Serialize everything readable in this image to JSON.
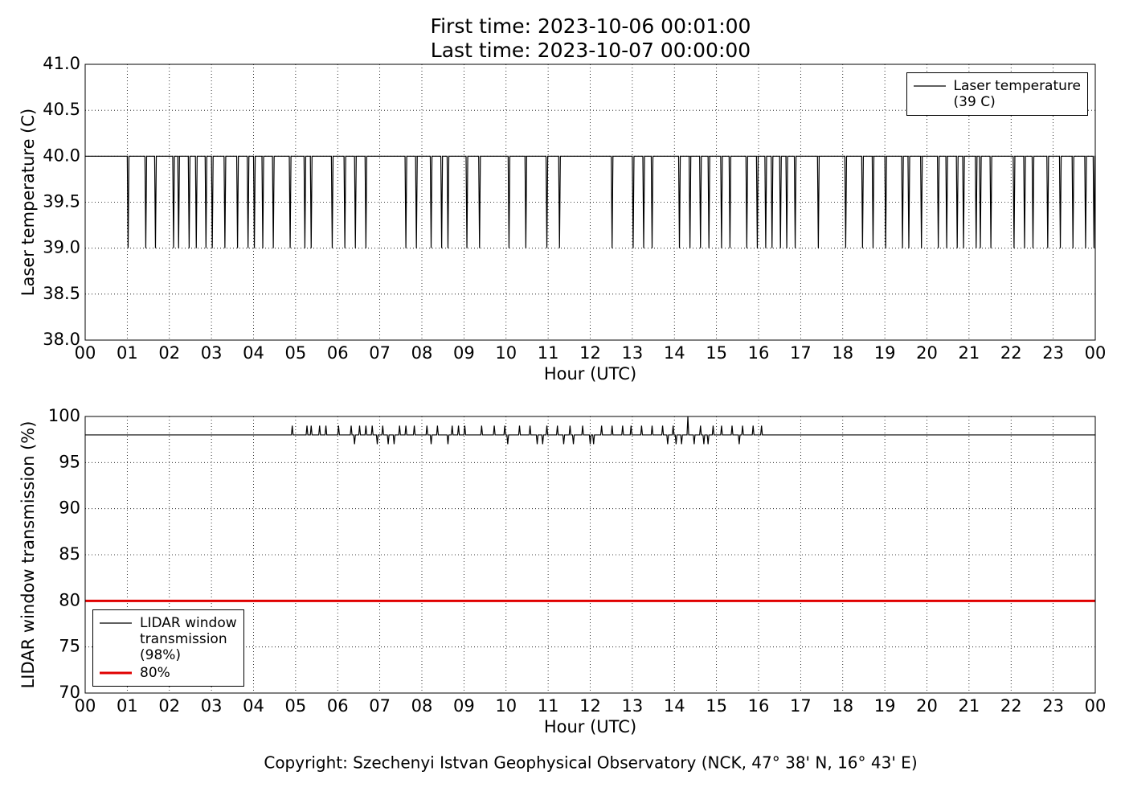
{
  "title": [
    "First time: 2023-10-06 00:01:00",
    "Last time: 2023-10-07 00:00:00"
  ],
  "footer": "Copyright: Szechenyi Istvan Geophysical Observatory (NCK, 47° 38' N, 16° 43' E)",
  "chart_data": [
    {
      "type": "line",
      "xlabel": "Hour (UTC)",
      "ylabel": "Laser temperature (C)",
      "xlim": [
        0,
        24
      ],
      "ylim": [
        38,
        41
      ],
      "grid": true,
      "legend": "upper right",
      "xticks": [
        {
          "value": 0,
          "label": "00"
        },
        {
          "value": 1,
          "label": "01"
        },
        {
          "value": 2,
          "label": "02"
        },
        {
          "value": 3,
          "label": "03"
        },
        {
          "value": 4,
          "label": "04"
        },
        {
          "value": 5,
          "label": "05"
        },
        {
          "value": 6,
          "label": "06"
        },
        {
          "value": 7,
          "label": "07"
        },
        {
          "value": 8,
          "label": "08"
        },
        {
          "value": 9,
          "label": "09"
        },
        {
          "value": 10,
          "label": "10"
        },
        {
          "value": 11,
          "label": "11"
        },
        {
          "value": 12,
          "label": "12"
        },
        {
          "value": 13,
          "label": "13"
        },
        {
          "value": 14,
          "label": "14"
        },
        {
          "value": 15,
          "label": "15"
        },
        {
          "value": 16,
          "label": "16"
        },
        {
          "value": 17,
          "label": "17"
        },
        {
          "value": 18,
          "label": "18"
        },
        {
          "value": 19,
          "label": "19"
        },
        {
          "value": 20,
          "label": "20"
        },
        {
          "value": 21,
          "label": "21"
        },
        {
          "value": 22,
          "label": "22"
        },
        {
          "value": 23,
          "label": "23"
        },
        {
          "value": 24,
          "label": "00"
        }
      ],
      "yticks": [
        {
          "value": 38,
          "label": "38.0"
        },
        {
          "value": 38.5,
          "label": "38.5"
        },
        {
          "value": 39,
          "label": "39.0"
        },
        {
          "value": 39.5,
          "label": "39.5"
        },
        {
          "value": 40,
          "label": "40.0"
        },
        {
          "value": 40.5,
          "label": "40.5"
        },
        {
          "value": 41,
          "label": "41.0"
        }
      ],
      "series": [
        {
          "name": "Laser temperature\n(39 C)",
          "color": "#000000",
          "x": [
            0,
            1.0,
            1.02,
            1.04,
            1.42,
            1.44,
            1.46,
            1.65,
            1.67,
            1.69,
            2.08,
            2.1,
            2.12,
            2.2,
            2.22,
            2.24,
            2.45,
            2.47,
            2.49,
            2.62,
            2.64,
            2.66,
            2.85,
            2.87,
            2.89,
            3.0,
            3.02,
            3.04,
            3.3,
            3.32,
            3.34,
            3.6,
            3.62,
            3.64,
            3.85,
            3.87,
            3.89,
            4.0,
            4.02,
            4.04,
            4.2,
            4.22,
            4.24,
            4.45,
            4.47,
            4.49,
            4.85,
            4.87,
            4.89,
            5.2,
            5.22,
            5.24,
            5.35,
            5.37,
            5.39,
            5.85,
            5.87,
            5.89,
            6.15,
            6.17,
            6.19,
            6.4,
            6.42,
            6.44,
            6.65,
            6.67,
            6.69,
            7.6,
            7.62,
            7.64,
            7.85,
            7.87,
            7.89,
            8.2,
            8.22,
            8.24,
            8.45,
            8.47,
            8.49,
            8.6,
            8.62,
            8.64,
            9.05,
            9.07,
            9.09,
            9.35,
            9.37,
            9.39,
            10.05,
            10.07,
            10.09,
            10.45,
            10.47,
            10.49,
            10.95,
            10.97,
            10.99,
            11.25,
            11.27,
            11.29,
            12.5,
            12.52,
            12.54,
            13.0,
            13.02,
            13.04,
            13.25,
            13.27,
            13.29,
            13.45,
            13.47,
            13.49,
            14.1,
            14.12,
            14.14,
            14.35,
            14.37,
            14.39,
            14.6,
            14.62,
            14.64,
            14.8,
            14.82,
            14.84,
            15.1,
            15.12,
            15.14,
            15.3,
            15.32,
            15.34,
            15.7,
            15.72,
            15.74,
            15.95,
            15.97,
            15.99,
            16.15,
            16.17,
            16.19,
            16.3,
            16.32,
            16.34,
            16.5,
            16.52,
            16.54,
            16.65,
            16.67,
            16.69,
            16.85,
            16.87,
            16.89,
            17.4,
            17.42,
            17.44,
            18.05,
            18.07,
            18.09,
            18.45,
            18.47,
            18.49,
            18.7,
            18.72,
            18.74,
            19.0,
            19.02,
            19.04,
            19.4,
            19.42,
            19.44,
            19.55,
            19.57,
            19.59,
            19.85,
            19.87,
            19.89,
            20.25,
            20.27,
            20.29,
            20.45,
            20.47,
            20.49,
            20.7,
            20.72,
            20.74,
            20.85,
            20.87,
            20.89,
            21.15,
            21.17,
            21.19,
            21.25,
            21.27,
            21.29,
            21.5,
            21.52,
            21.54,
            22.05,
            22.07,
            22.09,
            22.3,
            22.32,
            22.34,
            22.5,
            22.52,
            22.54,
            22.85,
            22.87,
            22.89,
            23.15,
            23.17,
            23.19,
            23.45,
            23.47,
            23.49,
            23.75,
            23.77,
            23.79,
            23.95,
            23.97,
            23.99,
            24
          ],
          "values": [
            40,
            40,
            39,
            40,
            40,
            39,
            40,
            40,
            39,
            40,
            40,
            39,
            40,
            40,
            39,
            40,
            40,
            39,
            40,
            40,
            39,
            40,
            40,
            39,
            40,
            40,
            39,
            40,
            40,
            39,
            40,
            40,
            39,
            40,
            40,
            39,
            40,
            40,
            39,
            40,
            40,
            39,
            40,
            40,
            39,
            40,
            40,
            39,
            40,
            40,
            39,
            40,
            40,
            39,
            40,
            40,
            39,
            40,
            40,
            39,
            40,
            40,
            39,
            40,
            40,
            39,
            40,
            40,
            39,
            40,
            40,
            39,
            40,
            40,
            39,
            40,
            40,
            39,
            40,
            40,
            39,
            40,
            40,
            39,
            40,
            40,
            39,
            40,
            40,
            39,
            40,
            40,
            39,
            40,
            40,
            39,
            40,
            40,
            39,
            40,
            40,
            39,
            40,
            40,
            39,
            40,
            40,
            39,
            40,
            40,
            39,
            40,
            40,
            39,
            40,
            40,
            39,
            40,
            40,
            39,
            40,
            40,
            39,
            40,
            40,
            39,
            40,
            40,
            39,
            40,
            40,
            39,
            40,
            40,
            39,
            40,
            40,
            39,
            40,
            40,
            39,
            40,
            40,
            39,
            40,
            40,
            39,
            40,
            40,
            39,
            40,
            40,
            39,
            40,
            40,
            39,
            40,
            40,
            39,
            40,
            40,
            39,
            40,
            40,
            39,
            40,
            40,
            39,
            40,
            40,
            39,
            40,
            40,
            39,
            40,
            40,
            39,
            40,
            40,
            39,
            40,
            40,
            39,
            40,
            40,
            39,
            40,
            40,
            39,
            40,
            40,
            39,
            40,
            40,
            39,
            40,
            40,
            39,
            40,
            40,
            39,
            40,
            40,
            39,
            40,
            40,
            39,
            40,
            40,
            39,
            40,
            40,
            39,
            40,
            40,
            39,
            40,
            40,
            39,
            40,
            40
          ]
        }
      ]
    },
    {
      "type": "line",
      "xlabel": "Hour (UTC)",
      "ylabel": "LIDAR window transmission (%)",
      "xlim": [
        0,
        24
      ],
      "ylim": [
        70,
        100
      ],
      "grid": true,
      "legend": "lower left",
      "xticks": [
        {
          "value": 0,
          "label": "00"
        },
        {
          "value": 1,
          "label": "01"
        },
        {
          "value": 2,
          "label": "02"
        },
        {
          "value": 3,
          "label": "03"
        },
        {
          "value": 4,
          "label": "04"
        },
        {
          "value": 5,
          "label": "05"
        },
        {
          "value": 6,
          "label": "06"
        },
        {
          "value": 7,
          "label": "07"
        },
        {
          "value": 8,
          "label": "08"
        },
        {
          "value": 9,
          "label": "09"
        },
        {
          "value": 10,
          "label": "10"
        },
        {
          "value": 11,
          "label": "11"
        },
        {
          "value": 12,
          "label": "12"
        },
        {
          "value": 13,
          "label": "13"
        },
        {
          "value": 14,
          "label": "14"
        },
        {
          "value": 15,
          "label": "15"
        },
        {
          "value": 16,
          "label": "16"
        },
        {
          "value": 17,
          "label": "17"
        },
        {
          "value": 18,
          "label": "18"
        },
        {
          "value": 19,
          "label": "19"
        },
        {
          "value": 20,
          "label": "20"
        },
        {
          "value": 21,
          "label": "21"
        },
        {
          "value": 22,
          "label": "22"
        },
        {
          "value": 23,
          "label": "23"
        },
        {
          "value": 24,
          "label": "00"
        }
      ],
      "yticks": [
        70,
        75,
        80,
        85,
        90,
        95,
        100
      ],
      "series": [
        {
          "name": "LIDAR window\ntransmission\n(98%)",
          "color": "#000000",
          "x": [
            0,
            4.9,
            4.92,
            4.94,
            5.25,
            5.27,
            5.29,
            5.35,
            5.37,
            5.39,
            5.55,
            5.57,
            5.59,
            5.7,
            5.72,
            5.74,
            6.0,
            6.02,
            6.04,
            6.3,
            6.32,
            6.34,
            6.38,
            6.4,
            6.42,
            6.5,
            6.52,
            6.54,
            6.65,
            6.67,
            6.69,
            6.8,
            6.82,
            6.84,
            6.92,
            6.94,
            6.96,
            7.05,
            7.07,
            7.09,
            7.18,
            7.2,
            7.22,
            7.32,
            7.34,
            7.36,
            7.45,
            7.47,
            7.49,
            7.6,
            7.62,
            7.64,
            7.8,
            7.82,
            7.84,
            8.1,
            8.12,
            8.14,
            8.2,
            8.22,
            8.24,
            8.35,
            8.37,
            8.39,
            8.6,
            8.62,
            8.64,
            8.7,
            8.72,
            8.74,
            8.85,
            8.87,
            8.89,
            9.0,
            9.02,
            9.04,
            9.4,
            9.42,
            9.44,
            9.7,
            9.72,
            9.74,
            9.95,
            9.97,
            9.99,
            10.02,
            10.04,
            10.06,
            10.3,
            10.32,
            10.34,
            10.55,
            10.57,
            10.59,
            10.72,
            10.74,
            10.76,
            10.85,
            10.87,
            10.89,
            10.95,
            10.97,
            10.99,
            11.2,
            11.22,
            11.24,
            11.35,
            11.37,
            11.39,
            11.5,
            11.52,
            11.54,
            11.58,
            11.6,
            11.62,
            11.8,
            11.82,
            11.84,
            11.98,
            12.0,
            12.02,
            12.06,
            12.08,
            12.1,
            12.25,
            12.27,
            12.29,
            12.5,
            12.52,
            12.54,
            12.75,
            12.77,
            12.79,
            12.95,
            12.97,
            12.99,
            13.2,
            13.22,
            13.24,
            13.45,
            13.47,
            13.49,
            13.7,
            13.72,
            13.74,
            13.82,
            13.84,
            13.86,
            13.95,
            13.97,
            13.99,
            14.02,
            14.04,
            14.06,
            14.15,
            14.17,
            14.19,
            14.3,
            14.32,
            14.34,
            14.45,
            14.47,
            14.49,
            14.6,
            14.62,
            14.64,
            14.68,
            14.7,
            14.72,
            14.78,
            14.8,
            14.82,
            14.9,
            14.92,
            14.94,
            15.1,
            15.12,
            15.14,
            15.35,
            15.37,
            15.39,
            15.52,
            15.54,
            15.56,
            15.6,
            15.62,
            15.64,
            15.85,
            15.87,
            15.89,
            16.05,
            16.07,
            16.09,
            24
          ],
          "values": [
            98,
            98,
            99,
            98,
            98,
            99,
            98,
            98,
            99,
            98,
            98,
            99,
            98,
            98,
            99,
            98,
            98,
            99,
            98,
            98,
            99,
            98,
            98,
            97,
            98,
            98,
            99,
            98,
            98,
            99,
            98,
            98,
            99,
            98,
            98,
            97,
            98,
            98,
            99,
            98,
            98,
            97,
            98,
            98,
            97,
            98,
            98,
            99,
            98,
            98,
            99,
            98,
            98,
            99,
            98,
            98,
            99,
            98,
            98,
            97,
            98,
            98,
            99,
            98,
            98,
            97,
            98,
            98,
            99,
            98,
            98,
            99,
            98,
            98,
            99,
            98,
            98,
            99,
            98,
            98,
            99,
            98,
            98,
            99,
            98,
            98,
            97,
            98,
            98,
            99,
            98,
            98,
            99,
            98,
            98,
            97,
            98,
            98,
            97,
            98,
            98,
            99,
            98,
            98,
            99,
            98,
            98,
            97,
            98,
            98,
            99,
            98,
            98,
            97,
            98,
            98,
            99,
            98,
            98,
            97,
            98,
            98,
            97,
            98,
            98,
            99,
            98,
            98,
            99,
            98,
            98,
            99,
            98,
            98,
            99,
            98,
            98,
            99,
            98,
            98,
            99,
            98,
            98,
            99,
            98,
            98,
            97,
            98,
            98,
            99,
            98,
            98,
            97,
            98,
            98,
            97,
            98,
            98,
            100,
            98,
            98,
            97,
            98,
            98,
            99,
            98,
            98,
            97,
            98,
            98,
            97,
            98,
            98,
            99,
            98,
            98,
            99,
            98,
            98,
            99,
            98,
            98,
            97,
            98,
            98,
            99,
            98,
            98,
            99,
            98,
            98,
            99,
            98,
            98
          ]
        },
        {
          "name": "80%",
          "color": "#e00000",
          "x": [
            0,
            24
          ],
          "values": [
            80,
            80
          ]
        }
      ]
    }
  ]
}
